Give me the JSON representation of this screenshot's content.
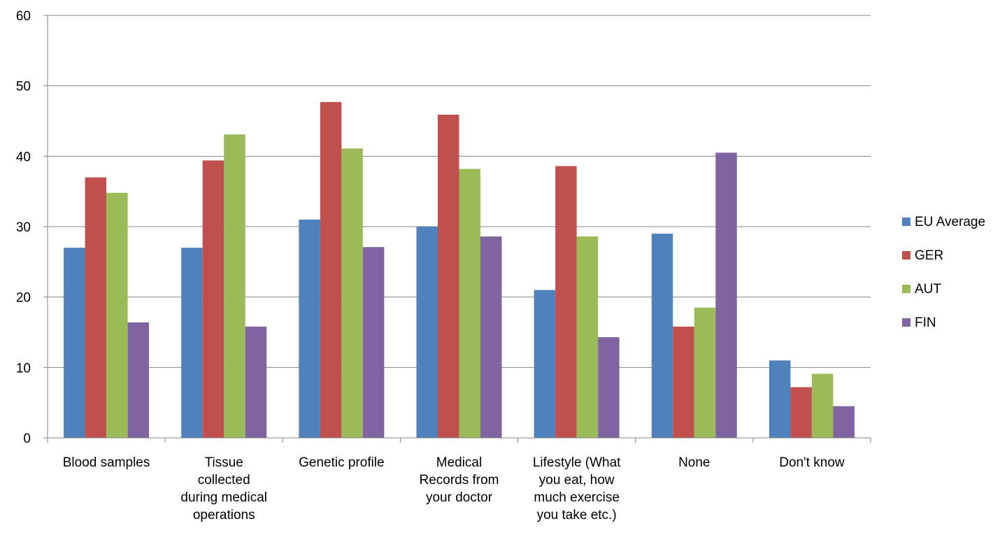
{
  "chart_data": {
    "type": "bar",
    "title": "",
    "xlabel": "",
    "ylabel": "",
    "ylim": [
      0,
      60
    ],
    "yticks": [
      0,
      10,
      20,
      30,
      40,
      50,
      60
    ],
    "grid": "horizontal",
    "legend_position": "right",
    "categories": [
      [
        "Blood samples"
      ],
      [
        "Tissue",
        "collected",
        "during medical",
        "operations"
      ],
      [
        "Genetic profile"
      ],
      [
        "Medical",
        "Records from",
        "your doctor"
      ],
      [
        "Lifestyle (What",
        "you eat, how",
        "much exercise",
        "you take etc.)"
      ],
      [
        "None"
      ],
      [
        "Don't know"
      ]
    ],
    "series": [
      {
        "name": "EU Average",
        "color": "#4F81BD",
        "values": [
          27,
          27,
          31,
          30,
          21,
          29,
          11
        ]
      },
      {
        "name": "GER",
        "color": "#C0504D",
        "values": [
          37,
          39.4,
          47.7,
          45.9,
          38.6,
          15.8,
          7.2
        ]
      },
      {
        "name": "AUT",
        "color": "#9BBB59",
        "values": [
          34.8,
          43.1,
          41.1,
          38.2,
          28.6,
          18.5,
          9.1
        ]
      },
      {
        "name": "FIN",
        "color": "#8064A2",
        "values": [
          16.4,
          15.8,
          27.1,
          28.6,
          14.3,
          40.5,
          4.5
        ]
      }
    ]
  }
}
